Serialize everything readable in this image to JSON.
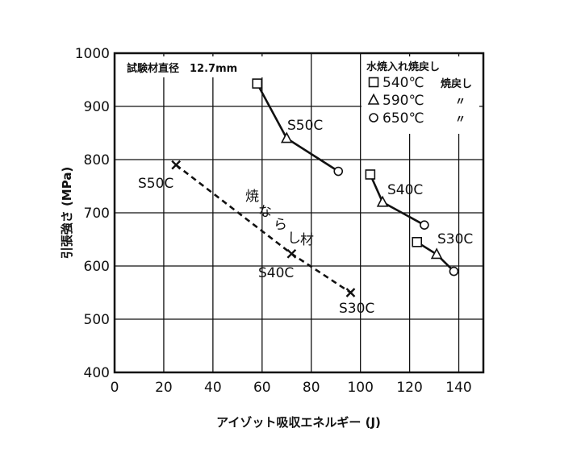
{
  "chart_data": {
    "type": "line",
    "xlabel": "アイゾット吸収エネルギー (J)",
    "ylabel": "引張強さ (MPa)",
    "xlim": [
      0,
      150
    ],
    "ylim": [
      400,
      1000
    ],
    "xticks": [
      0,
      20,
      40,
      60,
      80,
      100,
      120,
      140
    ],
    "yticks": [
      400,
      500,
      600,
      700,
      800,
      900,
      1000
    ],
    "grid": true,
    "info_box": "試験材直径　12.7mm",
    "legend": {
      "title": "水焼入れ焼戻し",
      "entries": [
        {
          "marker": "square",
          "label": "540℃",
          "note": "焼戻し"
        },
        {
          "marker": "triangle",
          "label": "590℃",
          "note": "〃"
        },
        {
          "marker": "circle",
          "label": "650℃",
          "note": "〃"
        }
      ]
    },
    "series": [
      {
        "name": "S50C 水焼入れ焼戻し",
        "style": "solid",
        "label": "S50C",
        "points": [
          {
            "x": 58,
            "y": 943,
            "marker": "square"
          },
          {
            "x": 70,
            "y": 840,
            "marker": "triangle"
          },
          {
            "x": 91,
            "y": 778,
            "marker": "circle"
          }
        ]
      },
      {
        "name": "S40C 水焼入れ焼戻し",
        "style": "solid",
        "label": "S40C",
        "points": [
          {
            "x": 104,
            "y": 772,
            "marker": "square"
          },
          {
            "x": 109,
            "y": 720,
            "marker": "triangle"
          },
          {
            "x": 126,
            "y": 677,
            "marker": "circle"
          }
        ]
      },
      {
        "name": "S30C 水焼入れ焼戻し",
        "style": "solid",
        "label": "S30C",
        "points": [
          {
            "x": 123,
            "y": 645,
            "marker": "square"
          },
          {
            "x": 131,
            "y": 622,
            "marker": "triangle"
          },
          {
            "x": 138,
            "y": 590,
            "marker": "circle"
          }
        ]
      },
      {
        "name": "焼ならし材",
        "style": "dashed",
        "label": "焼ならし材",
        "points": [
          {
            "x": 25,
            "y": 790,
            "marker": "cross",
            "label": "S50C"
          },
          {
            "x": 72,
            "y": 623,
            "marker": "cross",
            "label": "S40C"
          },
          {
            "x": 96,
            "y": 550,
            "marker": "cross",
            "label": "S30C"
          }
        ]
      }
    ],
    "annotations": {
      "s50c_qt": "S50C",
      "s40c_qt": "S40C",
      "s30c_qt": "S30C",
      "s50c_n": "S50C",
      "s40c_n": "S40C",
      "s30c_n": "S30C",
      "normalized_chars": [
        "焼",
        "な",
        "ら",
        "し",
        "材"
      ]
    }
  }
}
